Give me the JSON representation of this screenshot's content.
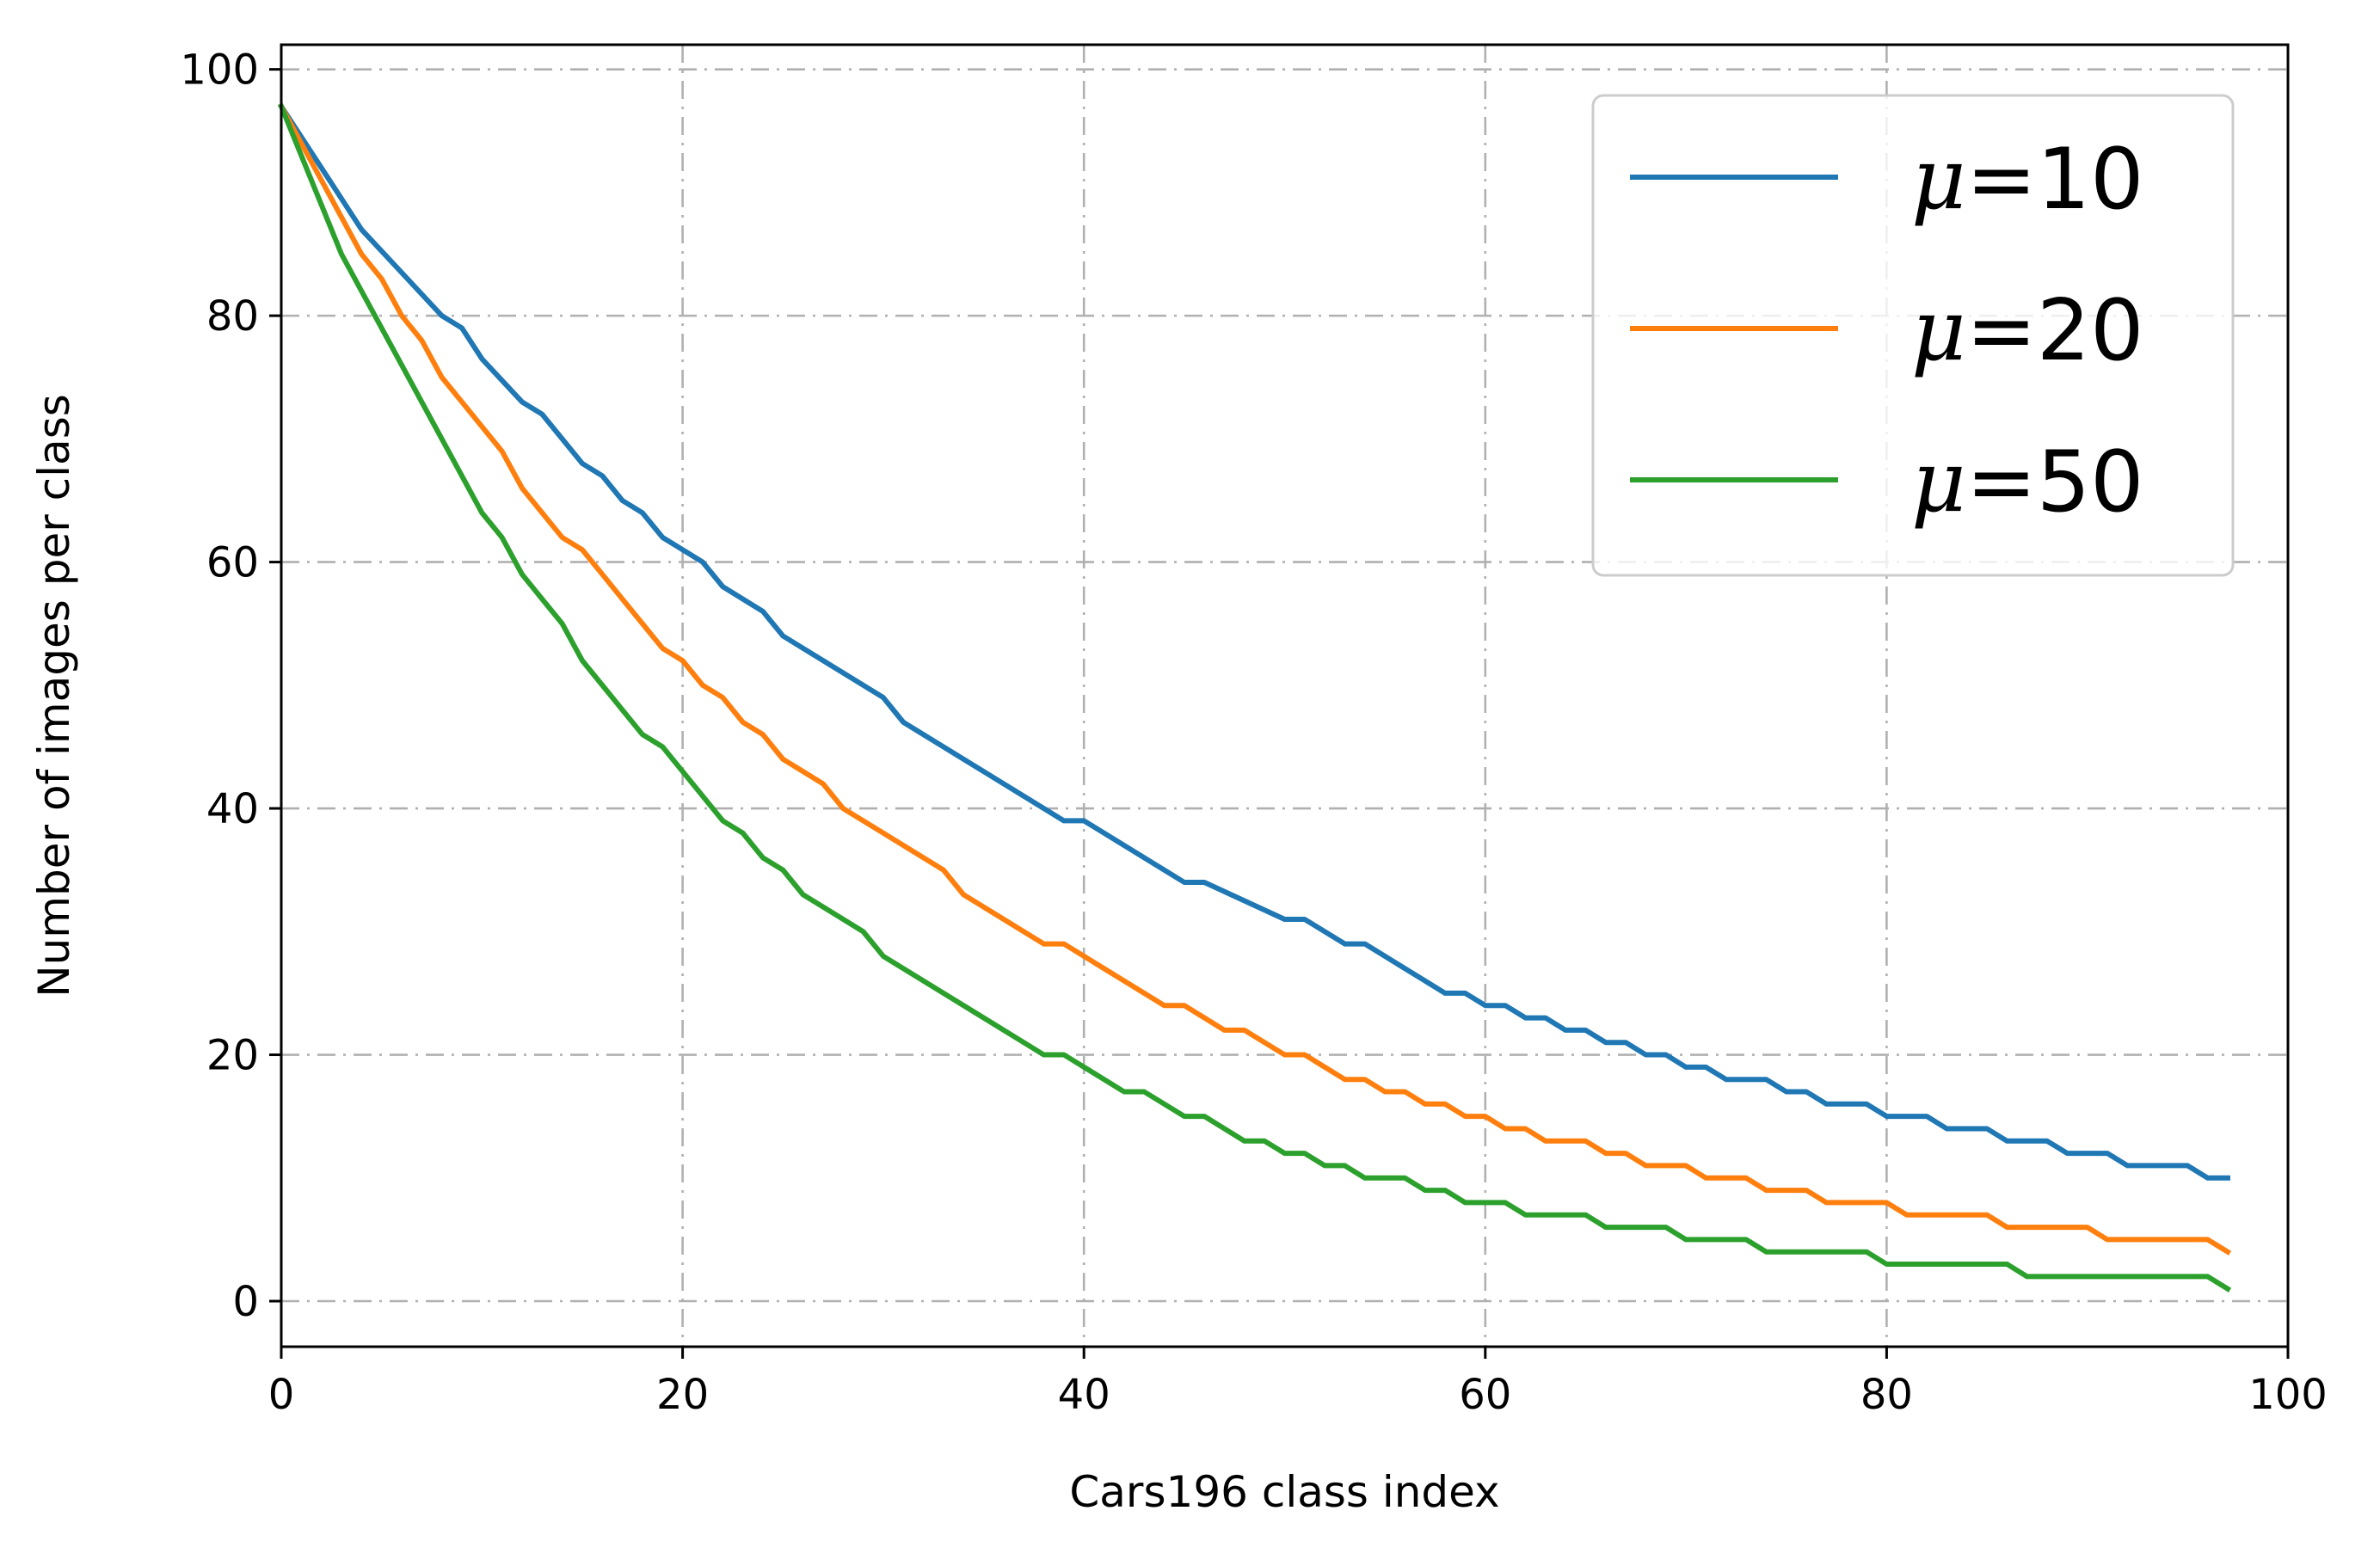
{
  "chart_data": {
    "type": "line",
    "xlabel": "Cars196 class index",
    "ylabel": "Number of images per class",
    "xlim": [
      0,
      100
    ],
    "ylim": [
      -3.7,
      102
    ],
    "xticks": [
      0,
      20,
      40,
      60,
      80,
      100
    ],
    "yticks": [
      0,
      20,
      40,
      60,
      80,
      100
    ],
    "xtick_labels": [
      "0",
      "20",
      "40",
      "60",
      "80",
      "100"
    ],
    "ytick_labels": [
      "0",
      "20",
      "40",
      "60",
      "80",
      "100"
    ],
    "grid": true,
    "legend_position": "top-right",
    "series": [
      {
        "name": "μ=10",
        "color": "#1f77b4",
        "x": [
          0,
          2,
          4,
          6,
          8,
          9,
          10,
          12,
          13,
          15,
          16,
          17,
          18,
          19,
          21,
          22,
          24,
          25,
          30,
          31,
          39,
          40,
          45,
          46,
          50,
          51,
          53,
          54,
          55,
          56,
          58,
          59,
          60,
          61,
          62,
          63,
          64,
          65,
          66,
          67,
          68,
          69,
          70,
          71,
          72,
          73,
          74,
          75,
          76,
          77,
          78,
          79,
          80,
          81,
          82,
          83,
          84,
          85,
          86,
          87,
          88,
          89,
          90,
          91,
          92,
          93,
          94,
          95,
          96,
          97
        ],
        "y": [
          97,
          92,
          87,
          83.5,
          80,
          79,
          76.5,
          73,
          72,
          68,
          67,
          65,
          64,
          62,
          60,
          58,
          56,
          54,
          49,
          47,
          39,
          39,
          34,
          34,
          31,
          31,
          29,
          29,
          28,
          27,
          25,
          25,
          24,
          24,
          23,
          23,
          22,
          22,
          21,
          21,
          20,
          20,
          19,
          19,
          18,
          18,
          18,
          17,
          17,
          16,
          16,
          16,
          15,
          15,
          15,
          14,
          14,
          14,
          13,
          13,
          13,
          12,
          12,
          12,
          11,
          11,
          11,
          11,
          10,
          10
        ]
      },
      {
        "name": "μ=20",
        "color": "#ff7f0e",
        "x": [
          0,
          2,
          4,
          5,
          6,
          7,
          8,
          9,
          11,
          12,
          13,
          14,
          15,
          16,
          17,
          18,
          19,
          20,
          21,
          22,
          23,
          24,
          25,
          26,
          27,
          28,
          29,
          30,
          33,
          34,
          38,
          39,
          44,
          45,
          47,
          48,
          50,
          51,
          53,
          54,
          55,
          56,
          57,
          58,
          59,
          60,
          61,
          62,
          63,
          64,
          65,
          66,
          67,
          68,
          69,
          70,
          71,
          72,
          73,
          74,
          75,
          76,
          77,
          78,
          79,
          80,
          81,
          82,
          83,
          84,
          85,
          86,
          87,
          88,
          89,
          90,
          91,
          92,
          93,
          94,
          95,
          96,
          97
        ],
        "y": [
          97,
          91,
          85,
          83,
          80,
          78,
          75,
          73,
          69,
          66,
          64,
          62,
          61,
          59,
          57,
          55,
          53,
          52,
          50,
          49,
          47,
          46,
          44,
          43,
          42,
          40,
          39,
          38,
          35,
          33,
          29,
          29,
          24,
          24,
          22,
          22,
          20,
          20,
          18,
          18,
          17,
          17,
          16,
          16,
          15,
          15,
          14,
          14,
          13,
          13,
          13,
          12,
          12,
          11,
          11,
          11,
          10,
          10,
          10,
          9,
          9,
          9,
          8,
          8,
          8,
          8,
          7,
          7,
          7,
          7,
          7,
          6,
          6,
          6,
          6,
          6,
          5,
          5,
          5,
          5,
          5,
          5,
          4
        ]
      },
      {
        "name": "μ=50",
        "color": "#2ca02c",
        "x": [
          0,
          1,
          2,
          3,
          10,
          11,
          12,
          13,
          14,
          15,
          16,
          17,
          18,
          19,
          22,
          23,
          24,
          25,
          26,
          27,
          29,
          30,
          38,
          39,
          42,
          43,
          45,
          46,
          48,
          49,
          50,
          51,
          52,
          53,
          54,
          55,
          56,
          57,
          58,
          59,
          60,
          61,
          62,
          63,
          64,
          65,
          66,
          67,
          68,
          69,
          70,
          71,
          72,
          73,
          74,
          75,
          76,
          77,
          78,
          79,
          80,
          81,
          82,
          83,
          84,
          85,
          86,
          87,
          88,
          89,
          90,
          91,
          92,
          93,
          94,
          95,
          96,
          97
        ],
        "y": [
          97,
          93,
          89,
          85,
          64,
          62,
          59,
          57,
          55,
          52,
          50,
          48,
          46,
          45,
          39,
          38,
          36,
          35,
          33,
          32,
          30,
          28,
          20,
          20,
          17,
          17,
          15,
          15,
          13,
          13,
          12,
          12,
          11,
          11,
          10,
          10,
          10,
          9,
          9,
          8,
          8,
          8,
          7,
          7,
          7,
          7,
          6,
          6,
          6,
          6,
          5,
          5,
          5,
          5,
          4,
          4,
          4,
          4,
          4,
          4,
          3,
          3,
          3,
          3,
          3,
          3,
          3,
          2,
          2,
          2,
          2,
          2,
          2,
          2,
          2,
          2,
          2,
          1
        ]
      }
    ]
  }
}
